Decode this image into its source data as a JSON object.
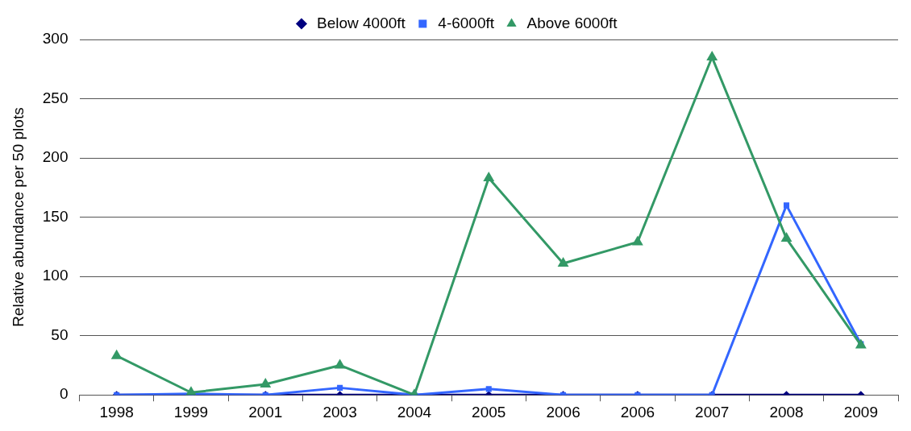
{
  "chart_data": {
    "type": "line",
    "ylabel": "Relative abundance per 50 plots",
    "categories": [
      "1998",
      "1999",
      "2001",
      "2003",
      "2004",
      "2005",
      "2006",
      "2006",
      "2007",
      "2008",
      "2009"
    ],
    "series": [
      {
        "name": "Below 4000ft",
        "color": "#000080",
        "marker": "diamond",
        "values": [
          0,
          0,
          0,
          0,
          0,
          0,
          0,
          0,
          0,
          0,
          0
        ]
      },
      {
        "name": "4-6000ft",
        "color": "#3366ff",
        "marker": "square",
        "values": [
          0,
          1,
          0,
          6,
          0,
          5,
          0,
          0,
          0,
          160,
          43
        ]
      },
      {
        "name": "Above 6000ft",
        "color": "#339966",
        "marker": "triangle",
        "values": [
          33,
          2,
          9,
          25,
          0,
          183,
          111,
          129,
          285,
          132,
          42
        ]
      }
    ],
    "ylim": [
      0,
      300
    ],
    "yticks": [
      0,
      50,
      100,
      150,
      200,
      250,
      300
    ],
    "grid": "y",
    "legend": "top",
    "line_style": "solid"
  }
}
